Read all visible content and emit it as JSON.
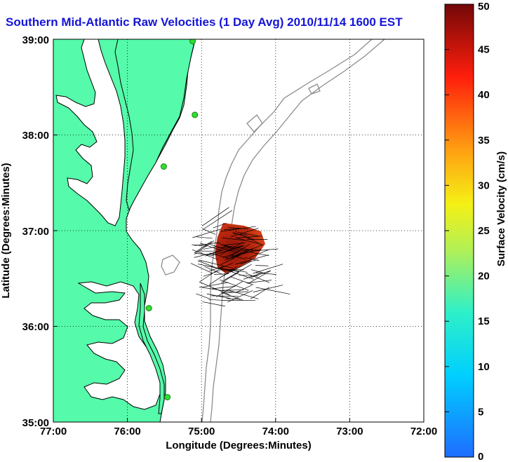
{
  "title": "Southern Mid-Atlantic Raw Velocities (1 Day Avg) 2010/11/14 1600 EST",
  "xlabel": "Longitude (Degrees:Minutes)",
  "ylabel": "Latitude (Degrees:Minutes)",
  "x_ticks": [
    "77:00",
    "76:00",
    "75:00",
    "74:00",
    "73:00",
    "72:00"
  ],
  "y_ticks": [
    "39:00",
    "38:00",
    "37:00",
    "36:00",
    "35:00"
  ],
  "colorbar": {
    "label": "Surface Velocity (cm/s)",
    "ticks": [
      "0",
      "5",
      "10",
      "15",
      "20",
      "25",
      "30",
      "35",
      "40",
      "45",
      "50"
    ],
    "min": 0,
    "max": 50
  },
  "colors": {
    "land": "#55fbaa",
    "coastline": "#000000",
    "bathymetry": "#8c8c8c",
    "title": "#1414d8",
    "station": "#33dd33",
    "vector": "#000000"
  },
  "chart_data": {
    "type": "map",
    "xlim": [
      -77,
      -72
    ],
    "ylim": [
      35,
      39
    ],
    "grid": true,
    "stations": [
      {
        "lon": -75.12,
        "lat": 38.98
      },
      {
        "lon": -75.09,
        "lat": 38.21
      },
      {
        "lon": -75.51,
        "lat": 37.67
      },
      {
        "lon": -75.71,
        "lat": 36.19
      },
      {
        "lon": -75.46,
        "lat": 35.26
      }
    ]
  }
}
